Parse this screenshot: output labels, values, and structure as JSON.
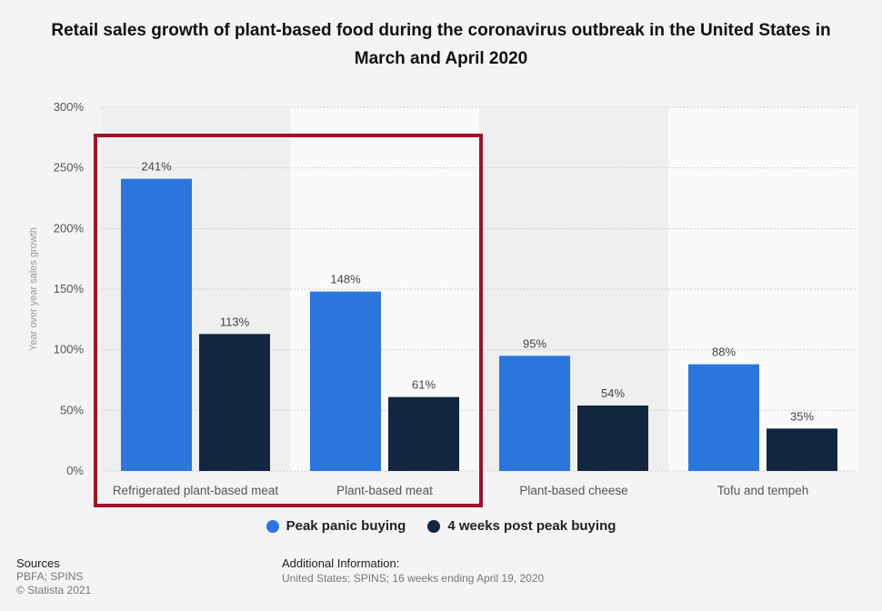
{
  "chart_data": {
    "type": "bar",
    "title": "Retail sales growth of plant-based food during the coronavirus outbreak in the United States in March and April 2020",
    "xlabel": "",
    "ylabel": "Year over year sales growth",
    "ylim": [
      0,
      300
    ],
    "yticks": [
      "0%",
      "50%",
      "100%",
      "150%",
      "200%",
      "250%",
      "300%"
    ],
    "ytick_values": [
      0,
      50,
      100,
      150,
      200,
      250,
      300
    ],
    "categories": [
      "Refrigerated plant-based meat",
      "Plant-based meat",
      "Plant-based cheese",
      "Tofu and tempeh"
    ],
    "series": [
      {
        "name": "Peak panic buying",
        "color": "#2a76dd",
        "values": [
          241,
          148,
          95,
          88
        ],
        "labels": [
          "241%",
          "148%",
          "95%",
          "88%"
        ]
      },
      {
        "name": "4 weeks post peak buying",
        "color": "#12263f",
        "values": [
          113,
          61,
          54,
          35
        ],
        "labels": [
          "113%",
          "61%",
          "54%",
          "35%"
        ]
      }
    ],
    "grid": true,
    "legend": "bottom",
    "highlight": {
      "categories": [
        "Refrigerated plant-based meat",
        "Plant-based meat"
      ],
      "color": "#a3102a"
    }
  },
  "footer": {
    "sources_heading": "Sources",
    "sources_text": "PBFA; SPINS",
    "copyright": "© Statista 2021",
    "additional_heading": "Additional Information:",
    "additional_text": "United States; SPINS; 16 weeks ending April 19, 2020"
  }
}
